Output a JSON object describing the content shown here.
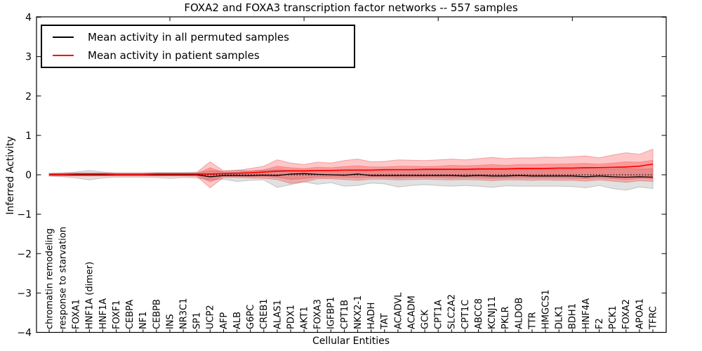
{
  "chart_data": {
    "type": "line",
    "title": "FOXA2 and FOXA3 transcription factor networks -- 557 samples",
    "xlabel": "Cellular Entities",
    "ylabel": "Inferred Activity",
    "ylim": [
      -4,
      4
    ],
    "yticks": [
      4,
      3,
      2,
      1,
      0,
      -1,
      -2,
      -3,
      -4
    ],
    "xticks_top": [
      10,
      20,
      30,
      40
    ],
    "grid": false,
    "frame_color": "#000000",
    "baseline": {
      "value": 0,
      "style": "dotted",
      "color": "#000000"
    },
    "legend": {
      "position": "upper-left",
      "entries": [
        {
          "label": "Mean activity in all permuted samples",
          "color": "#000000"
        },
        {
          "label": "Mean activity in patient samples",
          "color": "#ff0000"
        }
      ]
    },
    "categories": [
      "chromatin remodeling",
      "response to starvation",
      "FOXA1",
      "HNF1A (dimer)",
      "HNF1A",
      "FOXF1",
      "CEBPA",
      "NF1",
      "CEBPB",
      "INS",
      "NR3C1",
      "SP1",
      "UCP2",
      "AFP",
      "ALB",
      "G6PC",
      "CREB1",
      "ALAS1",
      "PDX1",
      "AKT1",
      "FOXA3",
      "IGFBP1",
      "CPT1B",
      "NKX2-1",
      "HADH",
      "TAT",
      "ACADVL",
      "ACADM",
      "GCK",
      "CPT1A",
      "SLC2A2",
      "CPT1C",
      "ABCC8",
      "KCNJ11",
      "PKLR",
      "ALDOB",
      "TTR",
      "HMGCS1",
      "DLK1",
      "BDH1",
      "HNF4A",
      "F2",
      "PCK1",
      "FOXA2",
      "APOA1",
      "TFRC"
    ],
    "series": [
      {
        "name": "Mean activity in all permuted samples",
        "color": "#000000",
        "style": "solid",
        "width": 1.3,
        "values": [
          0,
          0,
          0,
          0,
          0,
          0,
          0,
          0,
          0,
          0,
          0,
          0,
          -0.05,
          -0.02,
          -0.02,
          -0.02,
          -0.01,
          -0.02,
          0.02,
          0.03,
          0.01,
          0,
          -0.01,
          0.02,
          -0.02,
          -0.02,
          -0.02,
          -0.02,
          -0.02,
          -0.02,
          -0.02,
          -0.03,
          -0.02,
          -0.03,
          -0.03,
          -0.02,
          -0.03,
          -0.03,
          -0.03,
          -0.03,
          -0.05,
          -0.03,
          -0.05,
          -0.06,
          -0.05,
          -0.06
        ]
      },
      {
        "name": "Mean activity in patient samples",
        "color": "#ff0000",
        "style": "solid",
        "width": 1.7,
        "values": [
          0.01,
          0.01,
          0.02,
          0.02,
          0.02,
          0.01,
          0.01,
          0.01,
          0.02,
          0.02,
          0.02,
          0.02,
          0.02,
          0.03,
          0.04,
          0.05,
          0.07,
          0.09,
          0.1,
          0.1,
          0.11,
          0.11,
          0.12,
          0.12,
          0.12,
          0.13,
          0.13,
          0.13,
          0.14,
          0.14,
          0.14,
          0.14,
          0.15,
          0.15,
          0.15,
          0.16,
          0.16,
          0.16,
          0.17,
          0.17,
          0.18,
          0.18,
          0.19,
          0.2,
          0.22,
          0.27
        ]
      }
    ],
    "bands": [
      {
        "name": "permuted-sample-range",
        "color": "#888888",
        "opacity": 0.25,
        "stroke": "rgba(130,130,130,0.4)",
        "upper": [
          0.04,
          0.05,
          0.07,
          0.11,
          0.07,
          0.05,
          0.05,
          0.05,
          0.06,
          0.06,
          0.06,
          0.06,
          0.1,
          0.09,
          0.12,
          0.09,
          0.11,
          0.13,
          0.11,
          0.1,
          0.11,
          0.11,
          0.12,
          0.13,
          0.11,
          0.12,
          0.13,
          0.12,
          0.12,
          0.12,
          0.13,
          0.12,
          0.13,
          0.14,
          0.13,
          0.13,
          0.13,
          0.13,
          0.13,
          0.13,
          0.15,
          0.13,
          0.15,
          0.17,
          0.14,
          0.15
        ],
        "lower": [
          -0.04,
          -0.05,
          -0.08,
          -0.13,
          -0.08,
          -0.06,
          -0.06,
          -0.06,
          -0.07,
          -0.09,
          -0.07,
          -0.08,
          -0.13,
          -0.11,
          -0.17,
          -0.14,
          -0.13,
          -0.32,
          -0.25,
          -0.18,
          -0.24,
          -0.2,
          -0.29,
          -0.27,
          -0.21,
          -0.23,
          -0.31,
          -0.27,
          -0.25,
          -0.27,
          -0.29,
          -0.27,
          -0.29,
          -0.32,
          -0.28,
          -0.29,
          -0.29,
          -0.29,
          -0.29,
          -0.3,
          -0.33,
          -0.27,
          -0.35,
          -0.39,
          -0.31,
          -0.35
        ]
      },
      {
        "name": "patient-sample-range-outer",
        "color": "#ff0000",
        "opacity": 0.22,
        "stroke": "rgba(225,80,80,0.45)",
        "upper": [
          0.03,
          0.04,
          0.05,
          0.05,
          0.05,
          0.04,
          0.04,
          0.04,
          0.05,
          0.05,
          0.05,
          0.06,
          0.33,
          0.1,
          0.11,
          0.16,
          0.22,
          0.38,
          0.3,
          0.26,
          0.32,
          0.3,
          0.36,
          0.4,
          0.33,
          0.34,
          0.38,
          0.37,
          0.36,
          0.38,
          0.4,
          0.38,
          0.41,
          0.44,
          0.41,
          0.43,
          0.43,
          0.45,
          0.44,
          0.46,
          0.48,
          0.43,
          0.5,
          0.56,
          0.52,
          0.65
        ],
        "lower": [
          -0.02,
          -0.03,
          -0.03,
          -0.03,
          -0.03,
          -0.03,
          -0.03,
          -0.03,
          -0.03,
          -0.03,
          -0.03,
          -0.04,
          -0.33,
          -0.07,
          -0.07,
          -0.08,
          -0.09,
          -0.12,
          -0.22,
          -0.18,
          -0.1,
          -0.1,
          -0.12,
          -0.14,
          -0.11,
          -0.11,
          -0.13,
          -0.12,
          -0.11,
          -0.12,
          -0.13,
          -0.12,
          -0.13,
          -0.15,
          -0.13,
          -0.13,
          -0.14,
          -0.13,
          -0.14,
          -0.14,
          -0.16,
          -0.13,
          -0.16,
          -0.19,
          -0.15,
          -0.17
        ]
      },
      {
        "name": "patient-sample-range-inner",
        "color": "#ee3333",
        "opacity": 0.3,
        "stroke": "rgba(225,80,80,0.35)",
        "upper": [
          0.02,
          0.02,
          0.03,
          0.03,
          0.03,
          0.02,
          0.02,
          0.02,
          0.03,
          0.03,
          0.03,
          0.03,
          0.18,
          0.06,
          0.07,
          0.1,
          0.13,
          0.22,
          0.18,
          0.16,
          0.19,
          0.18,
          0.21,
          0.23,
          0.2,
          0.2,
          0.22,
          0.22,
          0.21,
          0.22,
          0.24,
          0.23,
          0.24,
          0.26,
          0.24,
          0.26,
          0.26,
          0.27,
          0.27,
          0.28,
          0.29,
          0.27,
          0.3,
          0.33,
          0.32,
          0.37
        ],
        "lower": [
          -0.01,
          -0.01,
          -0.02,
          -0.02,
          -0.02,
          -0.01,
          -0.01,
          -0.01,
          -0.02,
          -0.02,
          -0.02,
          -0.02,
          -0.18,
          -0.04,
          -0.04,
          -0.05,
          -0.05,
          -0.07,
          -0.12,
          -0.1,
          -0.06,
          -0.06,
          -0.07,
          -0.08,
          -0.06,
          -0.06,
          -0.08,
          -0.07,
          -0.07,
          -0.07,
          -0.08,
          -0.07,
          -0.08,
          -0.09,
          -0.08,
          -0.08,
          -0.08,
          -0.08,
          -0.08,
          -0.09,
          -0.1,
          -0.08,
          -0.1,
          -0.12,
          -0.09,
          -0.1
        ]
      }
    ]
  }
}
